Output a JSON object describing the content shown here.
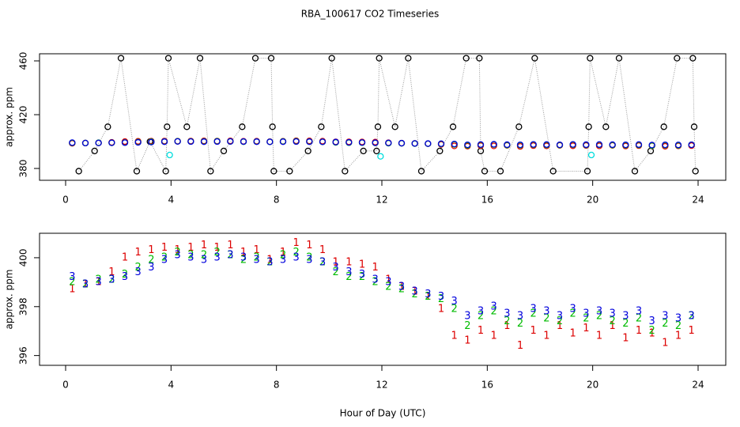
{
  "chart_data": [
    {
      "type": "scatter",
      "title": "RBA_100617  CO2 Timeseries",
      "ylabel": "approx. ppm",
      "xlim": [
        -0.99,
        25.05
      ],
      "xticks": [
        0,
        4,
        8,
        12,
        16,
        20,
        24
      ],
      "ylim": [
        371.2,
        465.3
      ],
      "yticks": [
        380,
        420,
        460
      ],
      "series": [
        {
          "color": "#000000",
          "marker": "o",
          "line": true,
          "x": [
            0.5,
            1.1,
            1.6,
            2.1,
            2.7,
            3.2,
            3.8,
            3.85,
            3.9,
            4.6,
            5.1,
            5.5,
            6.0,
            6.7,
            7.2,
            7.8,
            7.85,
            7.9,
            8.5,
            9.2,
            9.7,
            10.1,
            10.6,
            11.3,
            11.8,
            11.85,
            11.9,
            12.5,
            13.0,
            13.5,
            14.2,
            14.7,
            15.2,
            15.7,
            15.75,
            15.9,
            16.5,
            17.2,
            17.8,
            18.5,
            19.8,
            19.85,
            19.9,
            20.5,
            21.0,
            21.6,
            22.2,
            22.7,
            23.2,
            23.8,
            23.85,
            23.9
          ],
          "values": [
            378,
            393,
            411,
            462,
            378,
            400,
            378,
            411,
            462,
            411,
            462,
            378,
            393,
            411,
            462,
            462,
            411,
            378,
            378,
            393,
            411,
            462,
            378,
            393,
            393,
            411,
            462,
            411,
            462,
            378,
            393,
            411,
            462,
            462,
            393,
            378,
            378,
            411,
            462,
            378,
            378,
            411,
            462,
            411,
            462,
            378,
            393,
            411,
            462,
            462,
            411,
            378
          ]
        },
        {
          "color": "#dd0000",
          "marker": "o",
          "x": [
            0.25,
            0.75,
            1.25,
            1.75,
            2.25,
            2.75,
            3.25,
            3.75,
            4.25,
            4.75,
            5.25,
            5.75,
            6.25,
            6.75,
            7.25,
            7.75,
            8.25,
            8.75,
            9.25,
            9.75,
            10.25,
            10.75,
            11.25,
            11.75,
            12.25,
            12.75,
            13.25,
            13.75,
            14.25,
            14.75,
            15.25,
            15.75,
            16.25,
            16.75,
            17.25,
            17.75,
            18.25,
            18.75,
            19.25,
            19.75,
            20.25,
            20.75,
            21.25,
            21.75,
            22.25,
            22.75,
            23.25,
            23.75
          ],
          "values": [
            398.7,
            398.9,
            399.0,
            399.4,
            400.0,
            400.2,
            400.3,
            400.4,
            400.3,
            400.4,
            400.5,
            400.4,
            400.5,
            400.2,
            400.3,
            399.9,
            400.2,
            400.6,
            400.5,
            400.3,
            399.8,
            399.8,
            399.7,
            399.6,
            399.1,
            398.8,
            398.6,
            398.4,
            397.9,
            396.8,
            396.6,
            397.0,
            396.8,
            397.2,
            396.4,
            397.0,
            396.8,
            397.2,
            396.9,
            397.1,
            396.8,
            397.2,
            396.7,
            397.0,
            396.9,
            396.5,
            396.8,
            397.0
          ]
        },
        {
          "color": "#00bb00",
          "marker": "o",
          "x": [
            0.25,
            0.75,
            1.25,
            1.75,
            2.25,
            2.75,
            3.25,
            3.75,
            4.25,
            4.75,
            5.25,
            5.75,
            6.25,
            6.75,
            7.25,
            7.75,
            8.25,
            8.75,
            9.25,
            9.75,
            10.25,
            10.75,
            11.25,
            11.75,
            12.25,
            12.75,
            13.25,
            13.75,
            14.25,
            14.75,
            15.25,
            15.75,
            16.25,
            16.75,
            17.25,
            17.75,
            18.25,
            18.75,
            19.25,
            19.75,
            20.25,
            20.75,
            21.25,
            21.75,
            22.25,
            22.75,
            23.25,
            23.75
          ],
          "values": [
            399.0,
            398.9,
            399.1,
            399.1,
            399.3,
            399.6,
            399.9,
            400.0,
            400.2,
            400.1,
            400.1,
            400.2,
            400.1,
            399.9,
            400.0,
            399.8,
            400.1,
            400.2,
            400.0,
            399.8,
            399.4,
            399.2,
            399.2,
            399.0,
            398.8,
            398.7,
            398.5,
            398.4,
            398.3,
            397.9,
            397.2,
            397.6,
            397.8,
            397.4,
            397.3,
            397.7,
            397.5,
            397.4,
            397.7,
            397.5,
            397.6,
            397.4,
            397.3,
            397.5,
            397.0,
            397.3,
            397.2,
            397.6
          ]
        },
        {
          "color": "#0000dd",
          "marker": "o",
          "x": [
            0.25,
            0.75,
            1.25,
            1.75,
            2.25,
            2.75,
            3.25,
            3.75,
            4.25,
            4.75,
            5.25,
            5.75,
            6.25,
            6.75,
            7.25,
            7.75,
            8.25,
            8.75,
            9.25,
            9.75,
            10.25,
            10.75,
            11.25,
            11.75,
            12.25,
            12.75,
            13.25,
            13.75,
            14.25,
            14.75,
            15.25,
            15.75,
            16.25,
            16.75,
            17.25,
            17.75,
            18.25,
            18.75,
            19.25,
            19.75,
            20.25,
            20.75,
            21.25,
            21.75,
            22.25,
            22.75,
            23.25,
            23.75
          ],
          "values": [
            399.2,
            398.9,
            399.0,
            399.1,
            399.2,
            399.4,
            399.6,
            399.9,
            400.1,
            400.0,
            399.9,
            400.0,
            400.1,
            400.0,
            399.9,
            399.8,
            399.9,
            400.0,
            399.9,
            399.8,
            399.6,
            399.4,
            399.3,
            399.1,
            399.0,
            398.8,
            398.6,
            398.5,
            398.4,
            398.2,
            397.6,
            397.8,
            398.0,
            397.7,
            397.6,
            397.9,
            397.8,
            397.6,
            397.9,
            397.7,
            397.8,
            397.7,
            397.6,
            397.8,
            397.4,
            397.6,
            397.5,
            397.6
          ]
        },
        {
          "color": "#00dddd",
          "marker": "o",
          "x": [
            3.95,
            11.95,
            19.95
          ],
          "values": [
            390,
            389,
            390
          ]
        }
      ]
    },
    {
      "type": "scatter",
      "ylabel": "approx. ppm",
      "xlabel": "Hour of Day (UTC)",
      "xlim": [
        -0.99,
        25.05
      ],
      "xticks": [
        0,
        4,
        8,
        12,
        16,
        20,
        24
      ],
      "ylim": [
        395.6,
        401.0
      ],
      "yticks": [
        396,
        398,
        400
      ],
      "series": [
        {
          "color": "#dd0000",
          "marker": "1",
          "x": [
            0.25,
            0.75,
            1.25,
            1.75,
            2.25,
            2.75,
            3.25,
            3.75,
            4.25,
            4.75,
            5.25,
            5.75,
            6.25,
            6.75,
            7.25,
            7.75,
            8.25,
            8.75,
            9.25,
            9.75,
            10.25,
            10.75,
            11.25,
            11.75,
            12.25,
            12.75,
            13.25,
            13.75,
            14.25,
            14.75,
            15.25,
            15.75,
            16.25,
            16.75,
            17.25,
            17.75,
            18.25,
            18.75,
            19.25,
            19.75,
            20.25,
            20.75,
            21.25,
            21.75,
            22.25,
            22.75,
            23.25,
            23.75
          ],
          "values": [
            398.7,
            398.9,
            399.0,
            399.4,
            400.0,
            400.2,
            400.3,
            400.4,
            400.3,
            400.4,
            400.5,
            400.4,
            400.5,
            400.2,
            400.3,
            399.9,
            400.2,
            400.6,
            400.5,
            400.3,
            399.8,
            399.8,
            399.7,
            399.6,
            399.1,
            398.8,
            398.6,
            398.4,
            397.9,
            396.8,
            396.6,
            397.0,
            396.8,
            397.2,
            396.4,
            397.0,
            396.8,
            397.2,
            396.9,
            397.1,
            396.8,
            397.2,
            396.7,
            397.0,
            396.9,
            396.5,
            396.8,
            397.0
          ]
        },
        {
          "color": "#00bb00",
          "marker": "2",
          "x": [
            0.25,
            0.75,
            1.25,
            1.75,
            2.25,
            2.75,
            3.25,
            3.75,
            4.25,
            4.75,
            5.25,
            5.75,
            6.25,
            6.75,
            7.25,
            7.75,
            8.25,
            8.75,
            9.25,
            9.75,
            10.25,
            10.75,
            11.25,
            11.75,
            12.25,
            12.75,
            13.25,
            13.75,
            14.25,
            14.75,
            15.25,
            15.75,
            16.25,
            16.75,
            17.25,
            17.75,
            18.25,
            18.75,
            19.25,
            19.75,
            20.25,
            20.75,
            21.25,
            21.75,
            22.25,
            22.75,
            23.25,
            23.75
          ],
          "values": [
            399.0,
            398.9,
            399.1,
            399.1,
            399.3,
            399.6,
            399.9,
            400.0,
            400.2,
            400.1,
            400.1,
            400.2,
            400.1,
            399.9,
            400.0,
            399.8,
            400.1,
            400.2,
            400.0,
            399.8,
            399.4,
            399.2,
            399.2,
            399.0,
            398.8,
            398.7,
            398.5,
            398.4,
            398.3,
            397.9,
            397.2,
            397.6,
            397.8,
            397.4,
            397.3,
            397.7,
            397.5,
            397.4,
            397.7,
            397.5,
            397.6,
            397.4,
            397.3,
            397.5,
            397.0,
            397.3,
            397.2,
            397.6
          ]
        },
        {
          "color": "#0000dd",
          "marker": "3",
          "x": [
            0.25,
            0.75,
            1.25,
            1.75,
            2.25,
            2.75,
            3.25,
            3.75,
            4.25,
            4.75,
            5.25,
            5.75,
            6.25,
            6.75,
            7.25,
            7.75,
            8.25,
            8.75,
            9.25,
            9.75,
            10.25,
            10.75,
            11.25,
            11.75,
            12.25,
            12.75,
            13.25,
            13.75,
            14.25,
            14.75,
            15.25,
            15.75,
            16.25,
            16.75,
            17.25,
            17.75,
            18.25,
            18.75,
            19.25,
            19.75,
            20.25,
            20.75,
            21.25,
            21.75,
            22.25,
            22.75,
            23.25,
            23.75
          ],
          "values": [
            399.2,
            398.9,
            399.0,
            399.1,
            399.2,
            399.4,
            399.6,
            399.9,
            400.1,
            400.0,
            399.9,
            400.0,
            400.1,
            400.0,
            399.9,
            399.8,
            399.9,
            400.0,
            399.9,
            399.8,
            399.6,
            399.4,
            399.3,
            399.1,
            399.0,
            398.8,
            398.6,
            398.5,
            398.4,
            398.2,
            397.6,
            397.8,
            398.0,
            397.7,
            397.6,
            397.9,
            397.8,
            397.6,
            397.9,
            397.7,
            397.8,
            397.7,
            397.6,
            397.8,
            397.4,
            397.6,
            397.5,
            397.6
          ]
        }
      ]
    }
  ]
}
